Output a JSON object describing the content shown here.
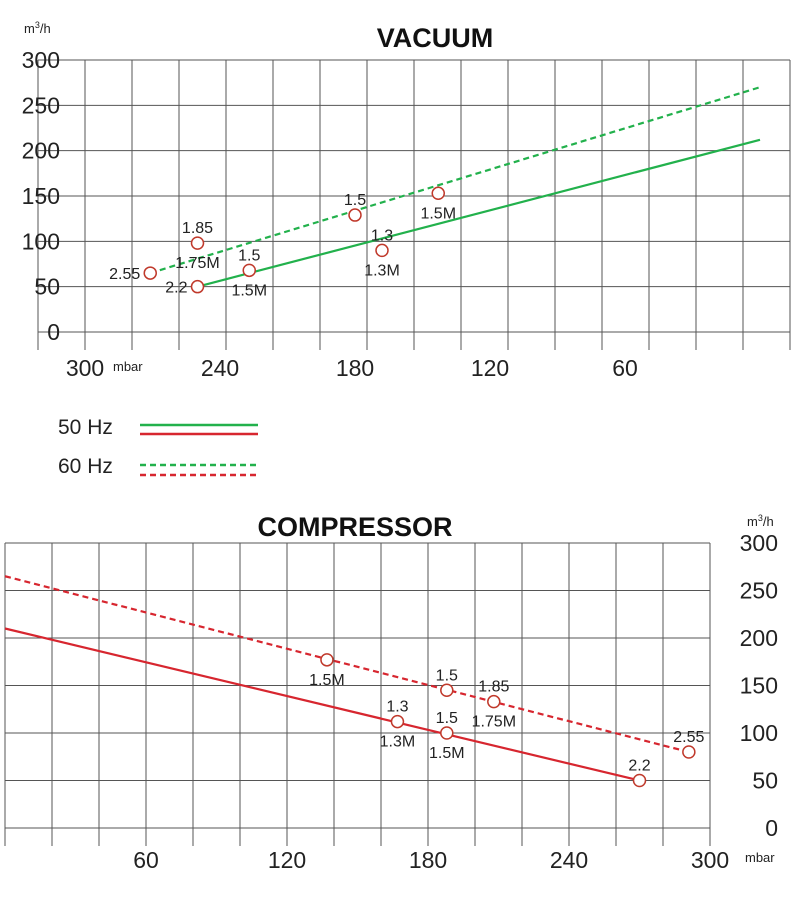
{
  "colors": {
    "hz50_vacuum": "#22b14c",
    "hz60_vacuum": "#22b14c",
    "compressor": "#d7262f",
    "marker": "#c0392b",
    "grid": "#555555"
  },
  "legend": [
    {
      "label": "50 Hz",
      "style": "solid"
    },
    {
      "label": "60 Hz",
      "style": "dashed"
    }
  ],
  "chart_data": [
    {
      "type": "line",
      "title": "VACUUM",
      "ylabel": "m3/h",
      "xlabel": "mbar",
      "x_reversed": true,
      "xlim": [
        330,
        0
      ],
      "ylim": [
        0,
        300
      ],
      "x_ticks": [
        300,
        240,
        180,
        120,
        60
      ],
      "x_tick_labels": [
        "300",
        "240",
        "180",
        "120",
        "60"
      ],
      "y_ticks": [
        0,
        50,
        100,
        150,
        200,
        250,
        300
      ],
      "grid": true,
      "series": [
        {
          "name": "50 Hz",
          "style": "solid",
          "color": "#22b14c",
          "x": [
            250,
            0
          ],
          "y": [
            50,
            212
          ]
        },
        {
          "name": "60 Hz",
          "style": "dashed",
          "color": "#22b14c",
          "x": [
            271,
            0
          ],
          "y": [
            65,
            270
          ]
        }
      ],
      "points": [
        {
          "x": 271,
          "y": 65,
          "labels": [
            "2.55"
          ]
        },
        {
          "x": 250,
          "y": 98,
          "labels": [
            "1.85",
            "1.75M"
          ]
        },
        {
          "x": 250,
          "y": 50,
          "labels": [
            "2.2"
          ]
        },
        {
          "x": 227,
          "y": 68,
          "labels": [
            "1.5",
            "1.5M"
          ]
        },
        {
          "x": 180,
          "y": 129,
          "labels": [
            "1.5"
          ]
        },
        {
          "x": 168,
          "y": 90,
          "labels": [
            "1.3",
            "1.3M"
          ]
        },
        {
          "x": 143,
          "y": 153,
          "labels": [
            "1.5M"
          ]
        }
      ]
    },
    {
      "type": "line",
      "title": "COMPRESSOR",
      "ylabel": "m3/h",
      "xlabel": "mbar",
      "xlim": [
        0,
        300
      ],
      "ylim": [
        0,
        300
      ],
      "x_ticks": [
        60,
        120,
        180,
        240,
        300
      ],
      "x_tick_labels": [
        "60",
        "120",
        "180",
        "240",
        "300"
      ],
      "y_ticks": [
        0,
        50,
        100,
        150,
        200,
        250,
        300
      ],
      "grid": true,
      "series": [
        {
          "name": "50 Hz",
          "style": "solid",
          "color": "#d7262f",
          "x": [
            0,
            270
          ],
          "y": [
            210,
            50
          ]
        },
        {
          "name": "60 Hz",
          "style": "dashed",
          "color": "#d7262f",
          "x": [
            0,
            291
          ],
          "y": [
            265,
            80
          ]
        }
      ],
      "points": [
        {
          "x": 137,
          "y": 177,
          "labels": [
            "1.5M"
          ]
        },
        {
          "x": 188,
          "y": 145,
          "labels": [
            "1.5"
          ]
        },
        {
          "x": 208,
          "y": 133,
          "labels": [
            "1.85",
            "1.75M"
          ]
        },
        {
          "x": 167,
          "y": 112,
          "labels": [
            "1.3",
            "1.3M"
          ]
        },
        {
          "x": 188,
          "y": 100,
          "labels": [
            "1.5",
            "1.5M"
          ]
        },
        {
          "x": 270,
          "y": 50,
          "labels": [
            "2.2"
          ]
        },
        {
          "x": 291,
          "y": 80,
          "labels": [
            "2.55"
          ]
        }
      ]
    }
  ]
}
